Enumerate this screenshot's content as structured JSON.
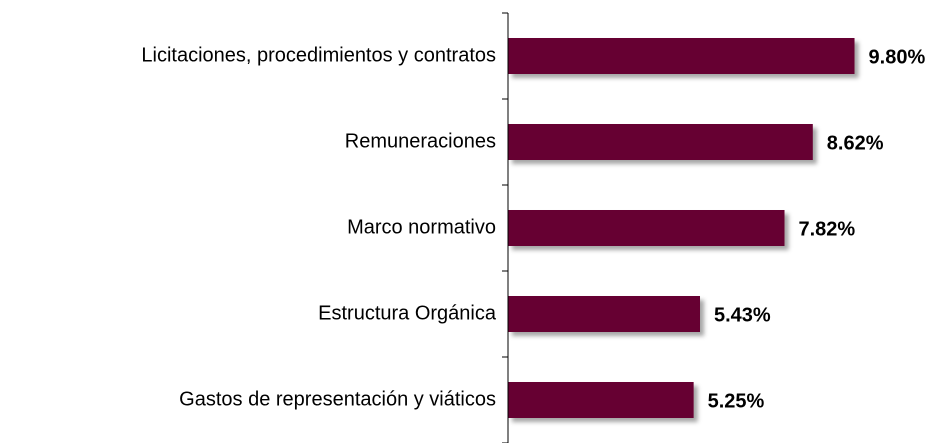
{
  "chart_data": {
    "type": "barh",
    "categories": [
      "Licitaciones, procedimientos y contratos",
      "Remuneraciones",
      "Marco normativo",
      "Estructura Orgánica",
      "Gastos de representación y viáticos"
    ],
    "values": [
      9.8,
      8.62,
      7.82,
      5.43,
      5.25
    ],
    "value_labels": [
      "9.80%",
      "8.62%",
      "7.82%",
      "5.43%",
      "5.25%"
    ],
    "color": "#660033",
    "xlim": [
      0,
      12.5
    ]
  }
}
